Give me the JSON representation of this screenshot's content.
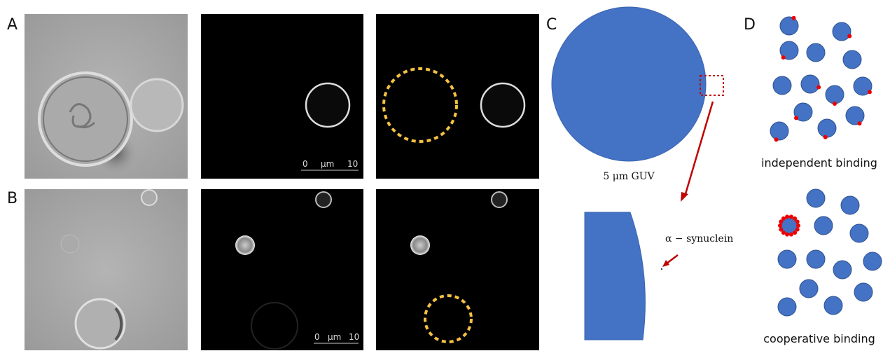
{
  "panels": {
    "a": "A",
    "b": "B",
    "c": "C",
    "d": "D"
  },
  "scale_bar_a": {
    "start": "0",
    "unit": "μm",
    "end": "10"
  },
  "scale_bar_b": {
    "start": "0",
    "unit": "μm",
    "end": "10"
  },
  "panel_c": {
    "guv_label": "5 μm GUV",
    "protein_label": "α − synuclein"
  },
  "panel_d": {
    "independent_label": "independent binding",
    "cooperative_label": "cooperative binding"
  }
}
